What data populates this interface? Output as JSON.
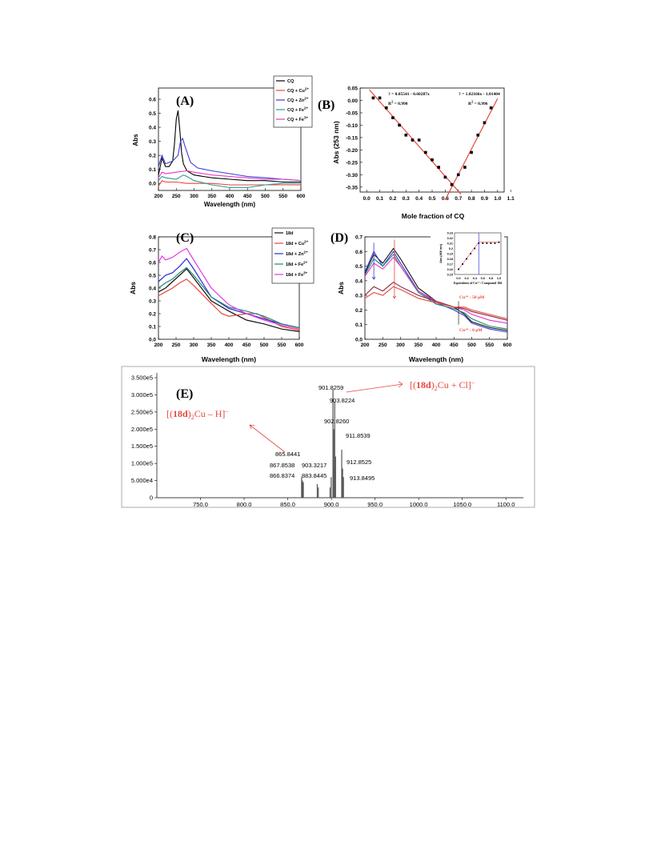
{
  "chart_data": [
    {
      "panel": "(A)",
      "type": "line",
      "xlabel": "Wavelength (nm)",
      "ylabel": "Abs",
      "xlim": [
        200,
        600
      ],
      "ylim": [
        -0.05,
        0.68
      ],
      "xticks": [
        "200",
        "250",
        "300",
        "350",
        "400",
        "450",
        "500",
        "550",
        "600"
      ],
      "yticks": [
        "0.0",
        "0.1",
        "0.2",
        "0.3",
        "0.4",
        "0.5",
        "0.6"
      ],
      "legend_position": "top-right",
      "series": [
        {
          "name": "CQ",
          "color": "#000000",
          "x": [
            200,
            210,
            220,
            230,
            240,
            245,
            250,
            255,
            260,
            265,
            270,
            280,
            300,
            350,
            400,
            450,
            500,
            550,
            600
          ],
          "y": [
            0.06,
            0.18,
            0.12,
            0.12,
            0.16,
            0.28,
            0.46,
            0.52,
            0.38,
            0.22,
            0.14,
            0.09,
            0.06,
            0.04,
            0.03,
            0.02,
            0.02,
            0.01,
            0.01
          ]
        },
        {
          "name": "CQ + Cu",
          "sup": "2+",
          "color": "#e8463c",
          "x": [
            200,
            210,
            220,
            250,
            280,
            300,
            350,
            400,
            450,
            500,
            550,
            600
          ],
          "y": [
            -0.02,
            0.02,
            0.01,
            0.01,
            0.0,
            0.0,
            0.0,
            -0.01,
            -0.01,
            -0.01,
            -0.01,
            -0.01
          ]
        },
        {
          "name": "CQ + Zn",
          "sup": "2+",
          "color": "#3a3ad8",
          "x": [
            200,
            210,
            220,
            240,
            255,
            262,
            268,
            275,
            290,
            310,
            350,
            400,
            450,
            500,
            550,
            600
          ],
          "y": [
            0.12,
            0.2,
            0.14,
            0.16,
            0.2,
            0.3,
            0.32,
            0.26,
            0.15,
            0.11,
            0.09,
            0.07,
            0.05,
            0.04,
            0.03,
            0.02
          ]
        },
        {
          "name": "CQ + Fe",
          "sup": "2+",
          "color": "#2a9d8f",
          "x": [
            200,
            210,
            220,
            250,
            270,
            280,
            300,
            350,
            400,
            450,
            500,
            550,
            600
          ],
          "y": [
            0.02,
            0.05,
            0.04,
            0.03,
            0.06,
            0.05,
            0.02,
            -0.01,
            -0.03,
            -0.03,
            -0.01,
            0.0,
            0.0
          ]
        },
        {
          "name": "CQ + Fe",
          "sup": "3+",
          "color": "#e535c4",
          "x": [
            200,
            210,
            220,
            250,
            280,
            300,
            350,
            400,
            450,
            500,
            550,
            600
          ],
          "y": [
            0.04,
            0.08,
            0.07,
            0.08,
            0.09,
            0.08,
            0.06,
            0.05,
            0.04,
            0.03,
            0.03,
            0.02
          ]
        }
      ]
    },
    {
      "panel": "(B)",
      "type": "scatter",
      "xlabel": "Mole fraction of CQ",
      "ylabel": "Abs (253 nm)",
      "xlim": [
        -0.05,
        1.05
      ],
      "ylim": [
        -0.37,
        0.05
      ],
      "xticks": [
        "0.0",
        "0.1",
        "0.2",
        "0.3",
        "0.4",
        "0.5",
        "0.6",
        "0.7",
        "0.8",
        "0.9",
        "1.0",
        "1.1"
      ],
      "yticks": [
        "0.05",
        "0.00",
        "-0.05",
        "-0.10",
        "-0.15",
        "-0.20",
        "-0.25",
        "-0.30",
        "-0.35"
      ],
      "points": {
        "x": [
          0.05,
          0.1,
          0.15,
          0.2,
          0.25,
          0.3,
          0.35,
          0.4,
          0.45,
          0.5,
          0.55,
          0.6,
          0.65,
          0.7,
          0.75,
          0.8,
          0.85,
          0.9,
          0.95
        ],
        "y": [
          0.01,
          0.01,
          -0.03,
          -0.07,
          -0.1,
          -0.14,
          -0.16,
          -0.16,
          -0.21,
          -0.24,
          -0.27,
          -0.31,
          -0.34,
          -0.3,
          -0.27,
          -0.21,
          -0.14,
          -0.09,
          -0.03
        ]
      },
      "fits": [
        {
          "equation": "? = 0.05541 - 0.60287x",
          "r2_label": "R",
          "r2_value": " = 0.990",
          "intercept": 0.05541,
          "slope": -0.60287,
          "x_range": [
            0.02,
            0.72
          ]
        },
        {
          "equation": "? = 1.02166x - 1.01404",
          "r2_label": "R",
          "r2_value": " = 0.996",
          "intercept": -1.01404,
          "slope": 1.02166,
          "x_range": [
            0.6,
            1.0
          ]
        }
      ]
    },
    {
      "panel": "(C)",
      "type": "line",
      "xlabel": "Wavelength (nm)",
      "ylabel": "Abs",
      "xlim": [
        200,
        600
      ],
      "ylim": [
        0.0,
        0.8
      ],
      "xticks": [
        "200",
        "250",
        "300",
        "350",
        "400",
        "450",
        "500",
        "550",
        "600"
      ],
      "yticks": [
        "0.0",
        "0.1",
        "0.2",
        "0.3",
        "0.4",
        "0.5",
        "0.6",
        "0.7",
        "0.8"
      ],
      "legend_position": "top-right",
      "series": [
        {
          "name": "18d",
          "color": "#111111",
          "x": [
            200,
            220,
            240,
            260,
            280,
            300,
            350,
            400,
            450,
            500,
            550,
            600
          ],
          "y": [
            0.37,
            0.4,
            0.45,
            0.5,
            0.55,
            0.48,
            0.3,
            0.22,
            0.15,
            0.12,
            0.08,
            0.06
          ]
        },
        {
          "name": "18d + Cu",
          "sup": "2+",
          "color": "#e8463c",
          "x": [
            200,
            220,
            240,
            260,
            280,
            300,
            350,
            380,
            400,
            450,
            480,
            500,
            550,
            600
          ],
          "y": [
            0.34,
            0.37,
            0.4,
            0.44,
            0.47,
            0.42,
            0.28,
            0.2,
            0.18,
            0.2,
            0.2,
            0.17,
            0.1,
            0.07
          ]
        },
        {
          "name": "18d + Zn",
          "sup": "2+",
          "color": "#2b2bd0",
          "x": [
            200,
            220,
            240,
            260,
            280,
            300,
            350,
            400,
            450,
            500,
            550,
            600
          ],
          "y": [
            0.45,
            0.5,
            0.52,
            0.57,
            0.63,
            0.55,
            0.33,
            0.24,
            0.2,
            0.16,
            0.12,
            0.09
          ]
        },
        {
          "name": "18d + Fe",
          "sup": "2+",
          "color": "#1f8a70",
          "x": [
            200,
            220,
            240,
            260,
            280,
            300,
            350,
            400,
            450,
            500,
            550,
            600
          ],
          "y": [
            0.4,
            0.44,
            0.47,
            0.52,
            0.56,
            0.5,
            0.33,
            0.25,
            0.22,
            0.18,
            0.12,
            0.09
          ]
        },
        {
          "name": "18d + Fe",
          "sup": "3+",
          "color": "#e535e0",
          "x": [
            200,
            210,
            220,
            240,
            260,
            280,
            300,
            350,
            400,
            450,
            500,
            550,
            600
          ],
          "y": [
            0.6,
            0.65,
            0.62,
            0.64,
            0.68,
            0.71,
            0.62,
            0.4,
            0.27,
            0.2,
            0.15,
            0.11,
            0.08
          ]
        }
      ]
    },
    {
      "panel": "(D)",
      "type": "line",
      "xlabel": "Wavelength (nm)",
      "ylabel": "Abs",
      "xlim": [
        200,
        600
      ],
      "ylim": [
        0.0,
        0.7
      ],
      "xticks": [
        "200",
        "250",
        "300",
        "350",
        "400",
        "450",
        "500",
        "550",
        "600"
      ],
      "yticks": [
        "0.0",
        "0.1",
        "0.2",
        "0.3",
        "0.4",
        "0.5",
        "0.6",
        "0.7"
      ],
      "annotations": [
        "Cu²⁺ : 50 μM",
        "Cu²⁺ : 0 μM"
      ],
      "series": [
        {
          "name": "",
          "color": "#111111",
          "x": [
            200,
            225,
            250,
            280,
            300,
            350,
            400,
            450,
            480,
            500,
            550,
            600
          ],
          "y": [
            0.45,
            0.58,
            0.52,
            0.62,
            0.55,
            0.35,
            0.26,
            0.22,
            0.17,
            0.12,
            0.08,
            0.06
          ]
        },
        {
          "name": "",
          "color": "#3a3ad8",
          "x": [
            200,
            225,
            250,
            280,
            300,
            350,
            400,
            450,
            480,
            500,
            550,
            600
          ],
          "y": [
            0.46,
            0.6,
            0.5,
            0.6,
            0.52,
            0.33,
            0.25,
            0.2,
            0.16,
            0.11,
            0.07,
            0.05
          ]
        },
        {
          "name": "",
          "color": "#1f8a70",
          "x": [
            200,
            225,
            250,
            280,
            300,
            350,
            400,
            450,
            480,
            500,
            550,
            600
          ],
          "y": [
            0.44,
            0.55,
            0.5,
            0.58,
            0.5,
            0.32,
            0.24,
            0.21,
            0.18,
            0.14,
            0.09,
            0.07
          ]
        },
        {
          "name": "",
          "color": "#e535c4",
          "x": [
            200,
            225,
            250,
            280,
            300,
            350,
            400,
            450,
            480,
            500,
            550,
            600
          ],
          "y": [
            0.43,
            0.52,
            0.48,
            0.56,
            0.5,
            0.33,
            0.26,
            0.22,
            0.2,
            0.17,
            0.13,
            0.11
          ]
        },
        {
          "name": "",
          "color": "#8a2a40",
          "x": [
            200,
            225,
            250,
            280,
            300,
            350,
            400,
            450,
            480,
            500,
            550,
            600
          ],
          "y": [
            0.3,
            0.36,
            0.33,
            0.39,
            0.36,
            0.3,
            0.26,
            0.22,
            0.21,
            0.19,
            0.16,
            0.13
          ]
        },
        {
          "name": "",
          "color": "#e8463c",
          "x": [
            200,
            225,
            250,
            280,
            300,
            350,
            400,
            450,
            480,
            500,
            550,
            600
          ],
          "y": [
            0.28,
            0.32,
            0.3,
            0.36,
            0.34,
            0.28,
            0.25,
            0.22,
            0.22,
            0.2,
            0.17,
            0.14
          ]
        }
      ],
      "inset": {
        "xlabel": "Equivalents of Cu²⁺ / Compound 18d",
        "ylabel": "Abs (468 nm)",
        "xlim": [
          -0.1,
          1.05
        ],
        "ylim": [
          0.15,
          0.23
        ],
        "xticks": [
          "0.0",
          "0.2",
          "0.4",
          "0.6",
          "0.8",
          "1.0"
        ],
        "yticks": [
          "0.23",
          "0.22",
          "0.21",
          "0.2",
          "0.19",
          "0.18",
          "0.17",
          "0.16",
          "0.15"
        ],
        "x": [
          0.0,
          0.1,
          0.2,
          0.3,
          0.4,
          0.5,
          0.6,
          0.7,
          0.8,
          0.9,
          1.0
        ],
        "y": [
          0.16,
          0.17,
          0.18,
          0.19,
          0.2,
          0.21,
          0.21,
          0.21,
          0.21,
          0.21,
          0.212
        ],
        "marker_x": 0.5
      }
    },
    {
      "panel": "(E)",
      "type": "bar",
      "xlim": [
        700,
        1120
      ],
      "ylim": [
        0,
        350000
      ],
      "xticks": [
        "750.0",
        "800.0",
        "850.0",
        "900.0",
        "950.0",
        "1000.0",
        "1050.0",
        "1100.0"
      ],
      "yticks": [
        "3.500e5",
        "3.000e5",
        "2.500e5",
        "2.000e5",
        "1.500e5",
        "1.000e5",
        "5.000e4",
        "0"
      ],
      "peaks": [
        {
          "mz": 865.8441,
          "intensity": 60000,
          "label": "865.8441"
        },
        {
          "mz": 866.8374,
          "intensity": 50000,
          "label": "866.8374"
        },
        {
          "mz": 867.8538,
          "intensity": 45000,
          "label": "867.8538"
        },
        {
          "mz": 883.8445,
          "intensity": 40000,
          "label": "883.8445"
        },
        {
          "mz": 885.0,
          "intensity": 30000,
          "label": ""
        },
        {
          "mz": 898.5,
          "intensity": 30000,
          "label": ""
        },
        {
          "mz": 899.8,
          "intensity": 60000,
          "label": ""
        },
        {
          "mz": 901.8259,
          "intensity": 315000,
          "label": "901.8259"
        },
        {
          "mz": 902.826,
          "intensity": 200000,
          "label": "902.8260"
        },
        {
          "mz": 903.3217,
          "intensity": 90000,
          "label": "903.3217"
        },
        {
          "mz": 903.8224,
          "intensity": 280000,
          "label": "903.8224"
        },
        {
          "mz": 904.8,
          "intensity": 120000,
          "label": ""
        },
        {
          "mz": 911.8539,
          "intensity": 140000,
          "label": "911.8539"
        },
        {
          "mz": 912.8525,
          "intensity": 85000,
          "label": "912.8525"
        },
        {
          "mz": 913.8495,
          "intensity": 60000,
          "label": "913.8495"
        }
      ],
      "annotations": [
        {
          "text": "[(",
          "bold": "18d",
          "mid": ")",
          "sub": "2",
          "rest": "Cu – H]",
          "sup": "–"
        },
        {
          "text": "[(",
          "bold": "18d",
          "mid": ")",
          "sub": "2",
          "rest": "Cu + Cl]",
          "sup": "–"
        }
      ]
    }
  ]
}
